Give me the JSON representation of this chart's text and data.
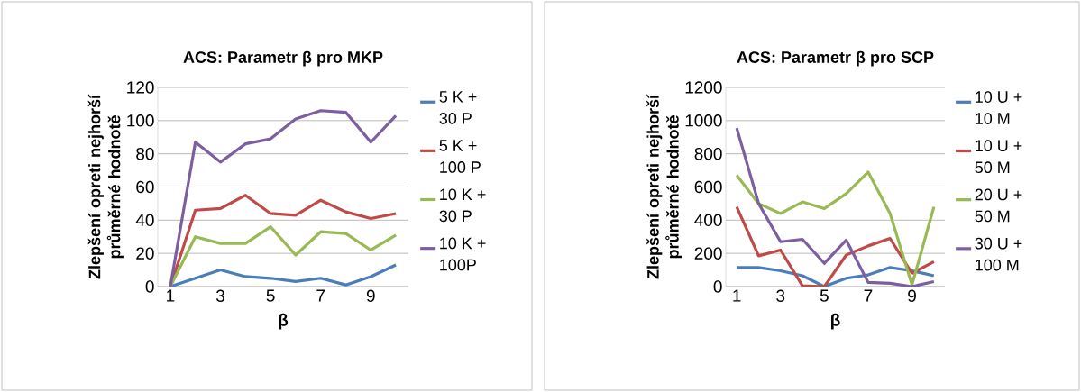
{
  "chart_data": [
    {
      "type": "line",
      "title": "ACS: Parametr β pro MKP",
      "xlabel": "β",
      "ylabel": "Zlepšení opreti nejhorší průměrné hodnotě",
      "categories": [
        "1",
        null,
        "3",
        null,
        "5",
        null,
        "7",
        null,
        "9",
        null
      ],
      "ylim": [
        0,
        120
      ],
      "yticks": [
        0,
        20,
        40,
        60,
        80,
        100,
        120
      ],
      "grid": "y",
      "legend": "right",
      "marker": "none",
      "line_style": "solid",
      "series": [
        {
          "name": "5 K + 30 P",
          "color": "#4a7ebb",
          "values": [
            0,
            5,
            10,
            6,
            5,
            3,
            5,
            1,
            6,
            13
          ]
        },
        {
          "name": "5 K + 100 P",
          "color": "#be4b48",
          "values": [
            0,
            46,
            47,
            55,
            44,
            43,
            52,
            45,
            41,
            44
          ]
        },
        {
          "name": "10 K + 30 P",
          "color": "#98b954",
          "values": [
            0,
            30,
            26,
            26,
            36,
            19,
            33,
            32,
            22,
            31
          ]
        },
        {
          "name": "10 K + 100P",
          "color": "#7d5fa0",
          "values": [
            0,
            87,
            75,
            86,
            89,
            101,
            106,
            105,
            87,
            103
          ]
        }
      ]
    },
    {
      "type": "line",
      "title": "ACS: Parametr β pro SCP",
      "xlabel": "β",
      "ylabel": "Zlepšení opreti nejhorší průměrné hodnotě",
      "categories": [
        "1",
        null,
        "3",
        null,
        "5",
        null,
        "7",
        null,
        "9",
        null
      ],
      "ylim": [
        0,
        1200
      ],
      "yticks": [
        0,
        200,
        400,
        600,
        800,
        1000,
        1200
      ],
      "grid": "y",
      "legend": "right",
      "marker": "none",
      "line_style": "solid",
      "series": [
        {
          "name": "10 U + 10 M",
          "color": "#4a7ebb",
          "values": [
            115,
            115,
            95,
            65,
            0,
            50,
            70,
            115,
            95,
            65
          ]
        },
        {
          "name": "10 U + 50 M",
          "color": "#be4b48",
          "values": [
            480,
            185,
            220,
            5,
            0,
            190,
            245,
            290,
            80,
            150
          ]
        },
        {
          "name": "20 U + 50 M",
          "color": "#98b954",
          "values": [
            670,
            500,
            440,
            510,
            470,
            560,
            690,
            440,
            10,
            480
          ]
        },
        {
          "name": "30 U + 100 M",
          "color": "#7d5fa0",
          "values": [
            955,
            500,
            270,
            285,
            140,
            280,
            25,
            20,
            0,
            30
          ]
        }
      ]
    }
  ]
}
